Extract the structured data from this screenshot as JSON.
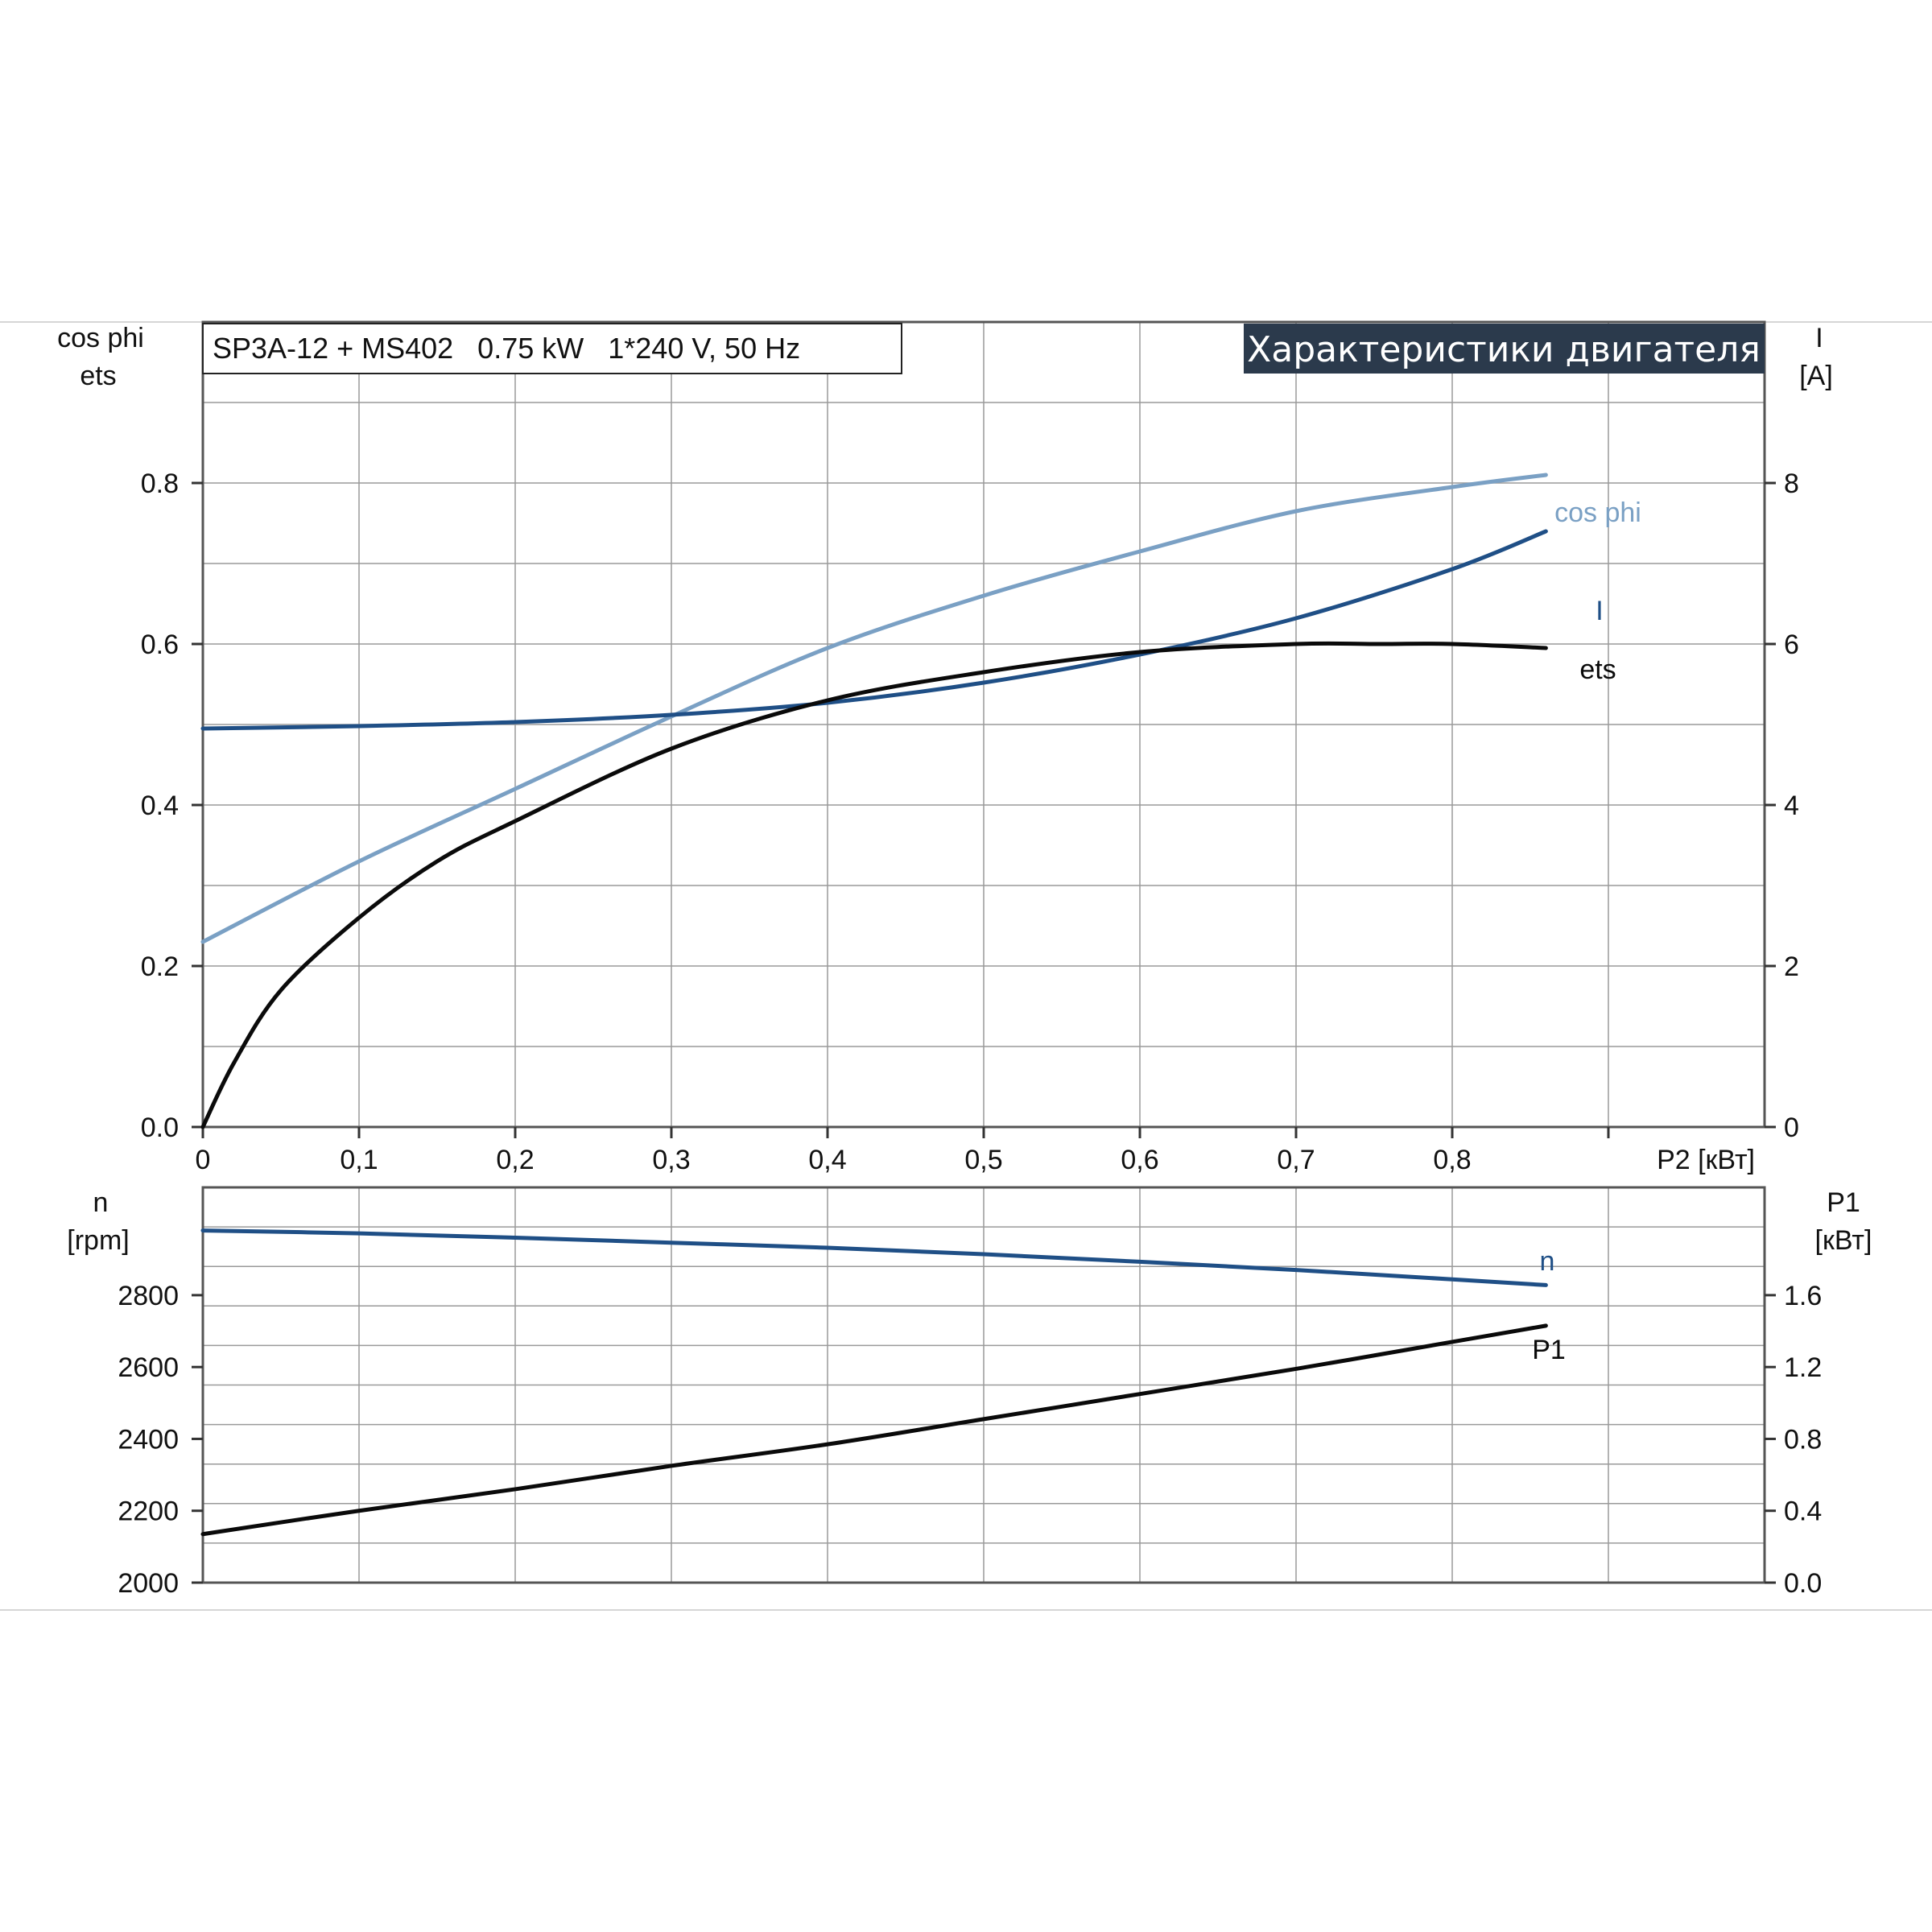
{
  "banner": "Характеристики двигателя",
  "info": "SP3A-12 + MS402   0.75 kW   1*240 V, 50 Hz",
  "colors": {
    "cos_phi": "#7aa0c4",
    "I": "#1f4f86",
    "eta": "#0a0a0a",
    "n": "#1f4f86",
    "P1": "#0a0a0a",
    "banner_bg": "#2b3a4c",
    "grid": "#9a9a9a"
  },
  "chart_data": [
    {
      "type": "line",
      "x_label": "P2 [кВт]",
      "x_ticks": [
        "0",
        "0,1",
        "0,2",
        "0,3",
        "0,4",
        "0,5",
        "0,6",
        "0,7",
        "0,8"
      ],
      "xlim": [
        0,
        1.0
      ],
      "y_left_label_1": "cos phi",
      "y_left_label_2": "ets",
      "y_left_ticks": [
        "0.0",
        "0.2",
        "0.4",
        "0.6",
        "0.8"
      ],
      "y_left_range": [
        0,
        1.0
      ],
      "y_right_label_1": "I",
      "y_right_label_2": "[A]",
      "y_right_ticks": [
        "0",
        "2",
        "4",
        "6",
        "8"
      ],
      "y_right_range": [
        0,
        10
      ],
      "grid": true,
      "series": [
        {
          "name": "cos phi",
          "axis": "left",
          "x": [
            0,
            0.1,
            0.2,
            0.3,
            0.4,
            0.5,
            0.6,
            0.7,
            0.8,
            0.86
          ],
          "y": [
            0.23,
            0.33,
            0.42,
            0.51,
            0.595,
            0.66,
            0.715,
            0.765,
            0.795,
            0.81
          ]
        },
        {
          "name": "I",
          "axis": "right",
          "x": [
            0,
            0.1,
            0.2,
            0.3,
            0.4,
            0.5,
            0.6,
            0.7,
            0.8,
            0.86
          ],
          "y": [
            4.95,
            4.98,
            5.03,
            5.12,
            5.27,
            5.52,
            5.87,
            6.32,
            6.93,
            7.4
          ]
        },
        {
          "name": "ets",
          "axis": "left",
          "x": [
            0,
            0.02,
            0.05,
            0.1,
            0.15,
            0.2,
            0.3,
            0.4,
            0.5,
            0.6,
            0.7,
            0.75,
            0.8,
            0.86
          ],
          "y": [
            0.0,
            0.08,
            0.17,
            0.26,
            0.33,
            0.38,
            0.47,
            0.53,
            0.565,
            0.59,
            0.6,
            0.6,
            0.6,
            0.595
          ]
        }
      ]
    },
    {
      "type": "line",
      "y_left_label_1": "n",
      "y_left_label_2": "[rpm]",
      "y_left_ticks": [
        "2000",
        "2200",
        "2400",
        "2600",
        "2800"
      ],
      "y_left_range": [
        2000,
        3100
      ],
      "y_right_label_1": "P1",
      "y_right_label_2": "[кВт]",
      "y_right_ticks": [
        "0.0",
        "0.4",
        "0.8",
        "1.2",
        "1.6"
      ],
      "y_right_range": [
        0,
        2.2
      ],
      "grid": true,
      "series": [
        {
          "name": "n",
          "axis": "left",
          "x": [
            0,
            0.1,
            0.2,
            0.3,
            0.4,
            0.5,
            0.6,
            0.7,
            0.8,
            0.86
          ],
          "y": [
            2980,
            2972,
            2960,
            2946,
            2932,
            2914,
            2893,
            2870,
            2844,
            2828
          ]
        },
        {
          "name": "P1",
          "axis": "right",
          "x": [
            0,
            0.1,
            0.2,
            0.3,
            0.4,
            0.5,
            0.6,
            0.7,
            0.8,
            0.86
          ],
          "y": [
            0.27,
            0.4,
            0.52,
            0.65,
            0.77,
            0.91,
            1.05,
            1.19,
            1.34,
            1.43
          ]
        }
      ]
    }
  ]
}
